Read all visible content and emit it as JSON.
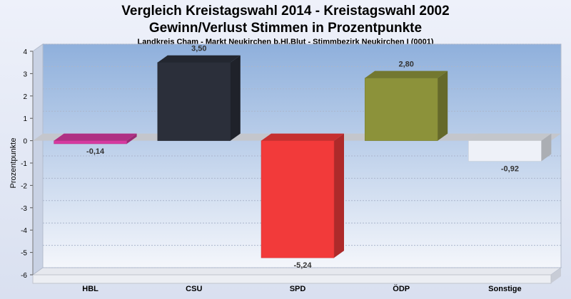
{
  "title_line1": "Vergleich Kreistagswahl 2014 - Kreistagswahl 2002",
  "title_line2": "Gewinn/Verlust Stimmen in Prozentpunkte",
  "subtitle": "Landkreis Cham - Markt Neukirchen b.Hl.Blut - Stimmbezirk Neukirchen I (0001)",
  "chart_data": {
    "type": "bar",
    "categories": [
      "HBL",
      "CSU",
      "SPD",
      "ÖDP",
      "Sonstige"
    ],
    "values": [
      -0.14,
      3.5,
      -5.24,
      2.8,
      -0.92
    ],
    "value_labels": [
      "-0,14",
      "3,50",
      "-5,24",
      "2,80",
      "-0,92"
    ],
    "colors": [
      "#d63aa0",
      "#2b2f3a",
      "#f23a3a",
      "#8c923a",
      "#eef1f8"
    ],
    "ylabel": "Prozentpunkte",
    "ylim": [
      -6,
      4
    ],
    "yticks": [
      "4",
      "3",
      "2",
      "1",
      "0",
      "-1",
      "-2",
      "-3",
      "-4",
      "-5",
      "-6"
    ],
    "grid": true
  }
}
